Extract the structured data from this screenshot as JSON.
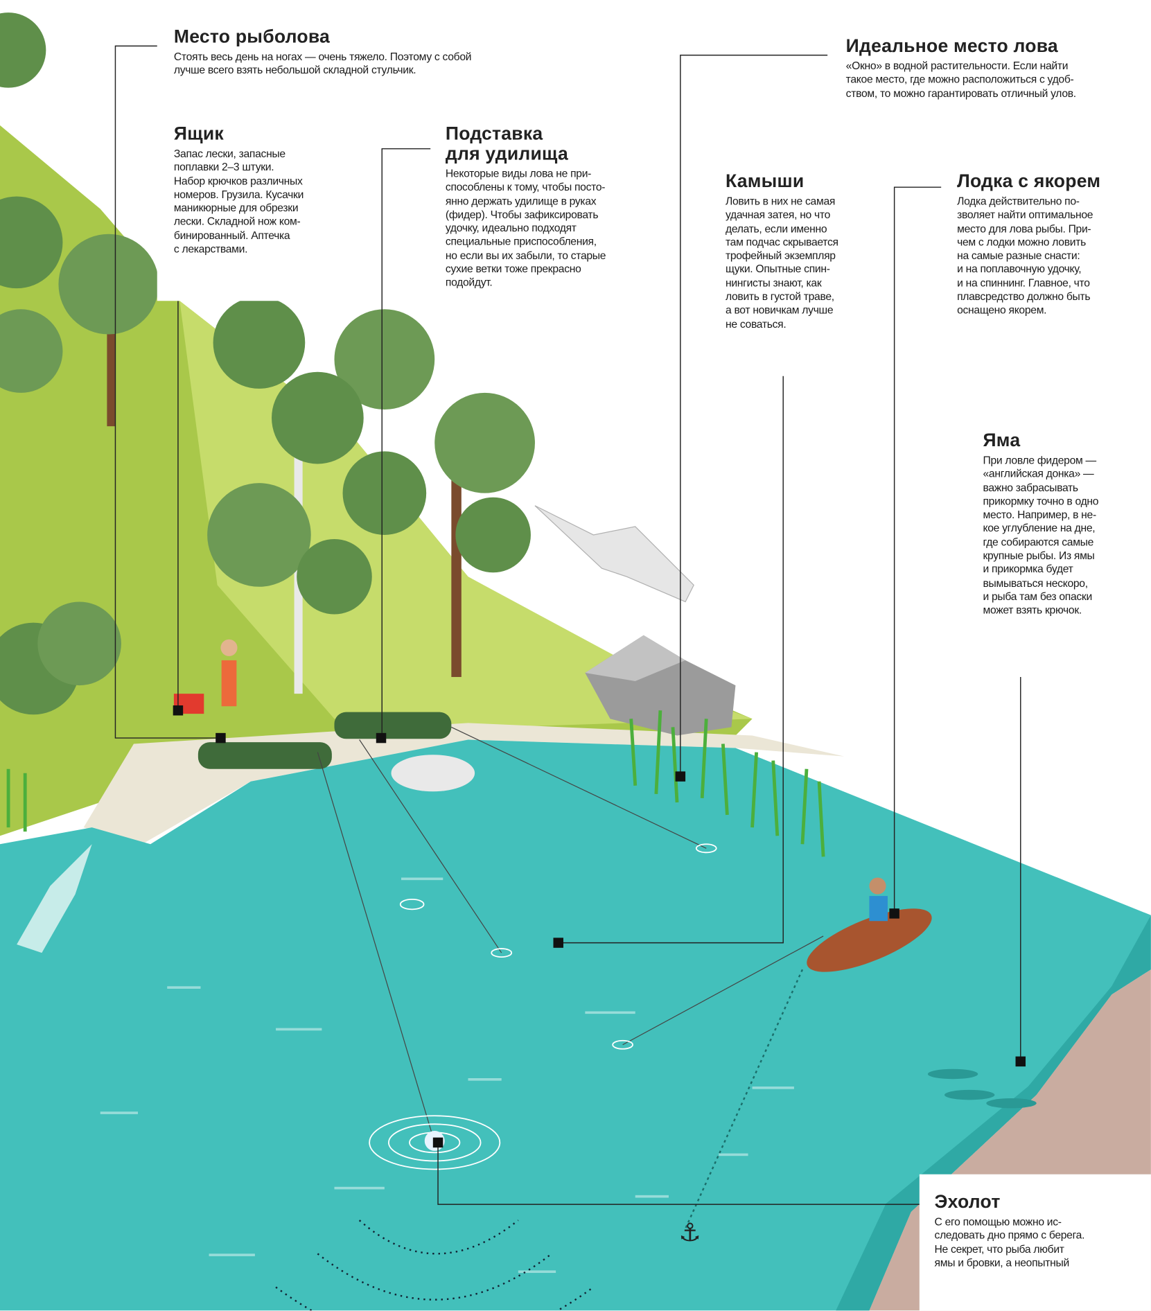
{
  "callouts": [
    {
      "title_lines": [
        "Место рыболова"
      ],
      "lines": [
        "Стоять весь день на ногах — очень тяжело. Поэтому с собой",
        "лучше всего взять небольшой складной стульчик."
      ]
    },
    {
      "title_lines": [
        "Ящик"
      ],
      "lines": [
        "Запас лески, запасные",
        "поплавки 2–3 штуки.",
        "Набор крючков различных",
        "номеров. Грузила. Кусачки",
        "маникюрные для обрезки",
        "лески. Складной нож ком-",
        "бинированный. Аптечка",
        "с лекарствами."
      ]
    },
    {
      "title_lines": [
        "Подставка",
        "для удилища"
      ],
      "lines": [
        "Некоторые виды лова не при-",
        "способлены к тому, чтобы посто-",
        "янно держать удилище в руках",
        "(фидер). Чтобы зафиксировать",
        "удочку, идеально подходят",
        "специальные приспособления,",
        "но если вы их забыли, то старые",
        "сухие ветки тоже прекрасно",
        "подойдут."
      ]
    },
    {
      "title_lines": [
        "Идеальное место лова"
      ],
      "lines": [
        "«Окно» в водной растительности. Если найти",
        "такое место, где можно расположиться с удоб-",
        "ством, то можно гарантировать отличный улов."
      ]
    },
    {
      "title_lines": [
        "Камыши"
      ],
      "lines": [
        "Ловить в них не самая",
        "удачная затея, но что",
        "делать, если именно",
        "там подчас скрывается",
        "трофейный экземпляр",
        "щуки. Опытные спин-",
        "нингисты знают, как",
        "ловить в густой траве,",
        "а вот новичкам лучше",
        "не соваться."
      ]
    },
    {
      "title_lines": [
        "Лодка с якорем"
      ],
      "lines": [
        "Лодка действительно по-",
        "зволяет найти оптимальное",
        "место для лова рыбы. При-",
        "чем с лодки можно ловить",
        "на самые разные снасти:",
        "и на поплавочную удочку,",
        "и на спиннинг. Главное, что",
        "плавсредство должно быть",
        "оснащено якорем."
      ]
    },
    {
      "title_lines": [
        "Яма"
      ],
      "lines": [
        "При ловле фидером —",
        "«английская донка» —",
        "важно забрасывать",
        "прикормку точно в одно",
        "место. Например, в не-",
        "кое углубление на дне,",
        "где собираются самые",
        "крупные рыбы. Из ямы",
        "и прикормка будет",
        "вымываться нескоро,",
        "и рыба там без опаски",
        "может взять крючок."
      ]
    },
    {
      "title_lines": [
        "Эхолот"
      ],
      "lines": [
        "С его помощью можно ис-",
        "следовать дно прямо с берега.",
        "Не секрет, что рыба любит",
        "ямы и бровки, а неопытный"
      ]
    }
  ]
}
